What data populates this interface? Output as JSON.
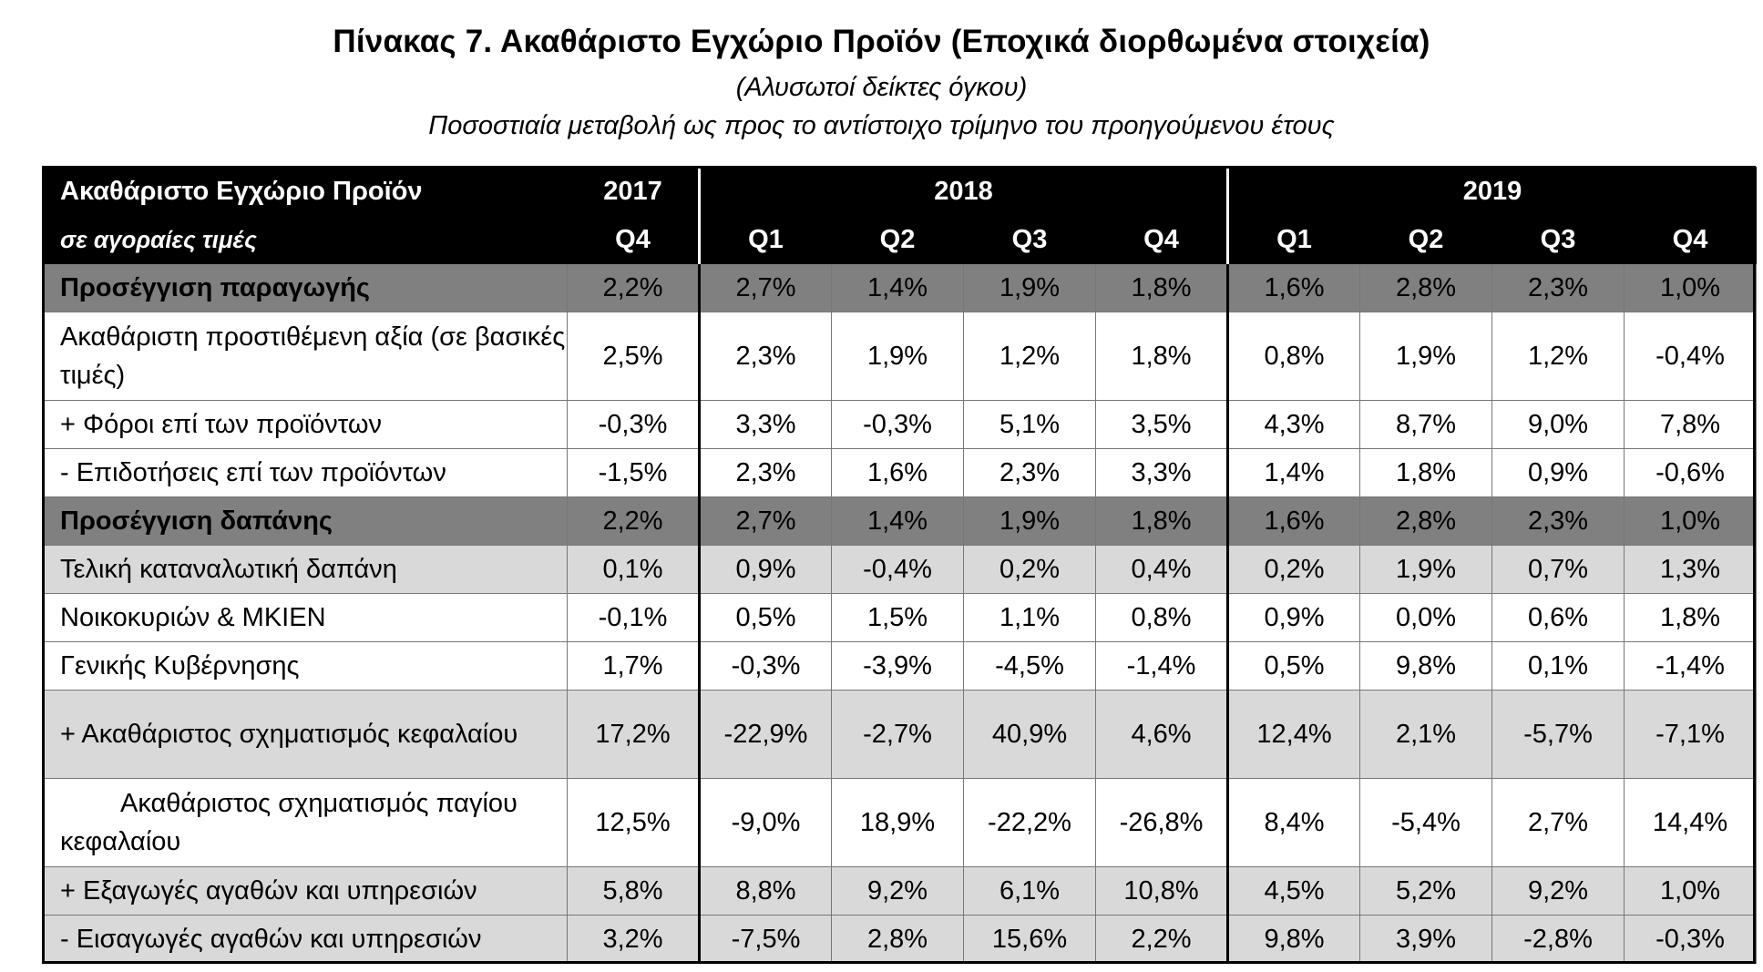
{
  "title": "Πίνακας 7. Ακαθάριστο Εγχώριο Προϊόν (Εποχικά διορθωμένα στοιχεία)",
  "subtitle": "(Αλυσωτοί δείκτες όγκου)",
  "subtitle2": "Ποσοστιαία μεταβολή ως προς το αντίστοιχο τρίμηνο  του προηγούμενου έτους",
  "header": {
    "label": "Ακαθάριστο Εγχώριο Προϊόν",
    "sublabel": "σε αγοραίες τιμές",
    "years": [
      "2017",
      "2018",
      "2019"
    ],
    "quarters": [
      "Q4",
      "Q1",
      "Q2",
      "Q3",
      "Q4",
      "Q1",
      "Q2",
      "Q3",
      "Q4"
    ]
  },
  "rows": [
    {
      "label": "Προσέγγιση παραγωγής",
      "values": [
        "2,2%",
        "2,7%",
        "1,4%",
        "1,9%",
        "1,8%",
        "1,6%",
        "2,8%",
        "2,3%",
        "1,0%"
      ]
    },
    {
      "label": "Ακαθάριστη προστιθέμενη αξία (σε βασικές τιμές)",
      "values": [
        "2,5%",
        "2,3%",
        "1,9%",
        "1,2%",
        "1,8%",
        "0,8%",
        "1,9%",
        "1,2%",
        "-0,4%"
      ]
    },
    {
      "label": "+  Φόροι επί των προϊόντων",
      "values": [
        "-0,3%",
        "3,3%",
        "-0,3%",
        "5,1%",
        "3,5%",
        "4,3%",
        "8,7%",
        "9,0%",
        "7,8%"
      ]
    },
    {
      "label": "-   Επιδοτήσεις επί των προϊόντων",
      "values": [
        "-1,5%",
        "2,3%",
        "1,6%",
        "2,3%",
        "3,3%",
        "1,4%",
        "1,8%",
        "0,9%",
        "-0,6%"
      ]
    },
    {
      "label": "Προσέγγιση δαπάνης",
      "values": [
        "2,2%",
        "2,7%",
        "1,4%",
        "1,9%",
        "1,8%",
        "1,6%",
        "2,8%",
        "2,3%",
        "1,0%"
      ]
    },
    {
      "label": "Τελική καταναλωτική δαπάνη",
      "values": [
        "0,1%",
        "0,9%",
        "-0,4%",
        "0,2%",
        "0,4%",
        "0,2%",
        "1,9%",
        "0,7%",
        "1,3%"
      ]
    },
    {
      "label": "Νοικοκυριών & ΜΚΙΕΝ",
      "values": [
        "-0,1%",
        "0,5%",
        "1,5%",
        "1,1%",
        "0,8%",
        "0,9%",
        "0,0%",
        "0,6%",
        "1,8%"
      ]
    },
    {
      "label": "Γενικής Κυβέρνησης",
      "values": [
        "1,7%",
        "-0,3%",
        "-3,9%",
        "-4,5%",
        "-1,4%",
        "0,5%",
        "9,8%",
        "0,1%",
        "-1,4%"
      ]
    },
    {
      "label": "+ Ακαθάριστος σχηματισμός κεφαλαίου",
      "values": [
        "17,2%",
        "-22,9%",
        "-2,7%",
        "40,9%",
        "4,6%",
        "12,4%",
        "2,1%",
        "-5,7%",
        "-7,1%"
      ]
    },
    {
      "label": "Ακαθάριστος σχηματισμός παγίου κεφαλαίου",
      "values": [
        "12,5%",
        "-9,0%",
        "18,9%",
        "-22,2%",
        "-26,8%",
        "8,4%",
        "-5,4%",
        "2,7%",
        "14,4%"
      ]
    },
    {
      "label": "+ Εξαγωγές αγαθών και υπηρεσιών",
      "values": [
        "5,8%",
        "8,8%",
        "9,2%",
        "6,1%",
        "10,8%",
        "4,5%",
        "5,2%",
        "9,2%",
        "1,0%"
      ]
    },
    {
      "label": "-  Εισαγωγές αγαθών και υπηρεσιών",
      "values": [
        "3,2%",
        "-7,5%",
        "2,8%",
        "15,6%",
        "2,2%",
        "9,8%",
        "3,9%",
        "-2,8%",
        "-0,3%"
      ]
    }
  ]
}
